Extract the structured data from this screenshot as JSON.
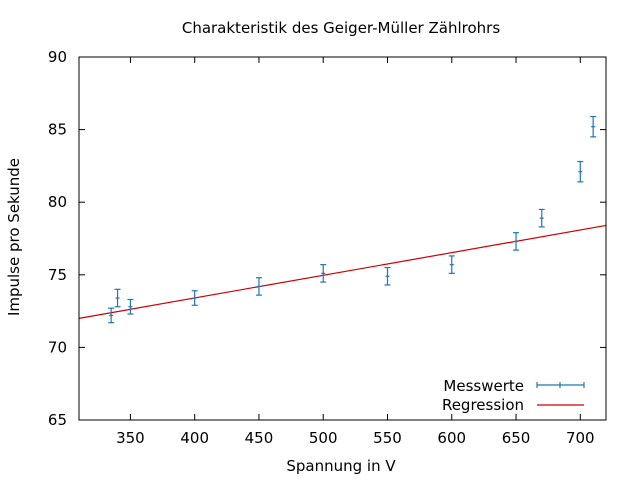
{
  "chart_data": {
    "type": "scatter",
    "title": "Charakteristik des Geiger-Müller Zählrohrs",
    "xlabel": "Spannung in V",
    "ylabel": "Impulse pro Sekunde",
    "xlim": [
      310,
      720
    ],
    "ylim": [
      65,
      90
    ],
    "xticks": [
      350,
      400,
      450,
      500,
      550,
      600,
      650,
      700
    ],
    "yticks": [
      65,
      70,
      75,
      80,
      85,
      90
    ],
    "grid": false,
    "legend_position": "bottom-right",
    "series": [
      {
        "name": "Messwerte",
        "color": "#1f77b4",
        "style": "points with y error bars",
        "x": [
          335,
          340,
          350,
          400,
          450,
          500,
          550,
          600,
          650,
          670,
          700,
          710
        ],
        "y": [
          72.2,
          73.4,
          72.8,
          73.4,
          74.2,
          75.1,
          74.9,
          75.7,
          77.3,
          78.9,
          82.1,
          85.2
        ],
        "yerr": [
          0.5,
          0.6,
          0.5,
          0.5,
          0.6,
          0.6,
          0.6,
          0.6,
          0.6,
          0.6,
          0.7,
          0.7
        ]
      },
      {
        "name": "Regression",
        "color": "#cc0000",
        "style": "line",
        "x": [
          310,
          720
        ],
        "y": [
          72.0,
          78.4
        ]
      }
    ]
  }
}
